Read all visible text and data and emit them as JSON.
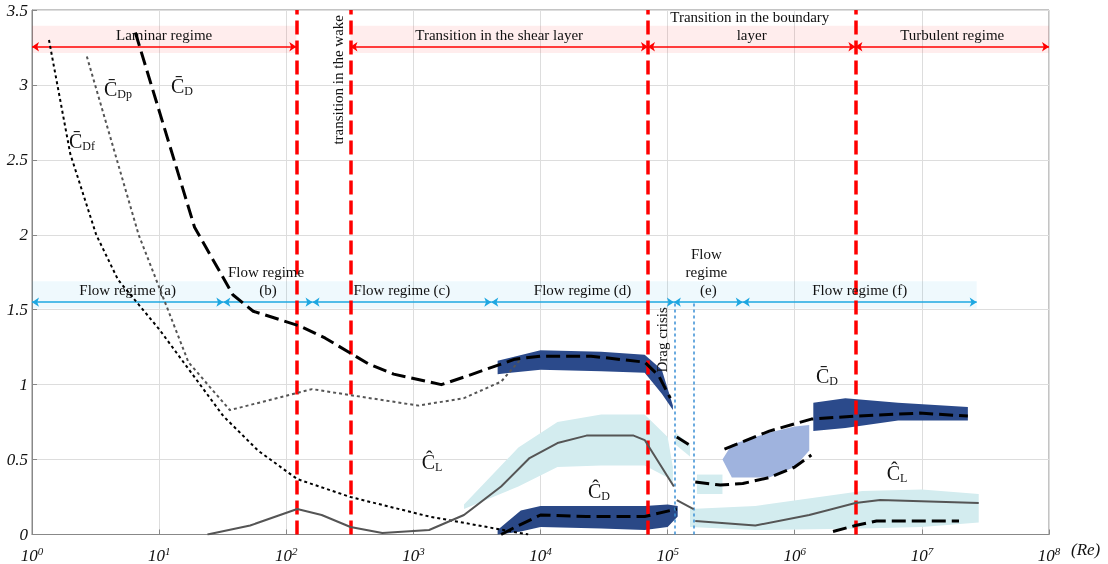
{
  "chart_data": {
    "type": "line",
    "xlabel": "(Re)",
    "log": "x",
    "grid": true,
    "xlim": [
      1,
      100000000
    ],
    "xticks": [
      {
        "value": 1,
        "label": "10$^{0}$"
      },
      {
        "value": 10,
        "label": "10$^{1}$"
      },
      {
        "value": 100,
        "label": "10$^{2}$"
      },
      {
        "value": 1000,
        "label": "10$^{3}$"
      },
      {
        "value": 10000,
        "label": "10$^{4}$"
      },
      {
        "value": 100000,
        "label": "10$^{5}$"
      },
      {
        "value": 1000000,
        "label": "10$^{6}$"
      },
      {
        "value": 10000000,
        "label": "10$^{7}$"
      },
      {
        "value": 100000000,
        "label": "10$^{8}$"
      }
    ],
    "ylim": [
      0,
      3.5
    ],
    "yticks": [
      0,
      0.5,
      1,
      1.5,
      2,
      2.5,
      3,
      3.5
    ],
    "series": [
      {
        "color": "#2b4a8b",
        "line_style": "solid",
        "x": [
          4600,
          10000,
          30000,
          66000,
          90000,
          110000
        ],
        "values": [
          null,
          null,
          null,
          null,
          null,
          null
        ],
        "upper": [
          1.16,
          1.23,
          1.22,
          1.2,
          1.1,
          0.86
        ],
        "lower": [
          1.07,
          1.1,
          1.09,
          1.08,
          0.94,
          0.83
        ]
      },
      {
        "color": "#2b4a8b",
        "line_style": "solid",
        "x": [
          1400000,
          2500000,
          6500000,
          23000000
        ],
        "values": [
          null,
          null,
          null,
          null
        ],
        "upper": [
          0.88,
          0.91,
          0.88,
          0.85
        ],
        "lower": [
          0.69,
          0.71,
          0.76,
          0.76
        ]
      },
      {
        "color": "#9fb3de",
        "line_style": "solid",
        "x": [
          270000,
          320000,
          630000,
          1000000,
          1300000
        ],
        "values": [
          null,
          null,
          null,
          null,
          null
        ],
        "upper": [
          0.5,
          0.6,
          0.68,
          0.72,
          0.73
        ],
        "lower": [
          0.5,
          0.38,
          0.38,
          0.45,
          0.56
        ]
      },
      {
        "color": "#2a4886",
        "line_style": "solid",
        "x": [
          4600,
          7000,
          10000,
          30000,
          66000,
          100000,
          120000
        ],
        "values": [
          null,
          null,
          null,
          null,
          null,
          null,
          null
        ],
        "upper": [
          0.03,
          0.16,
          0.19,
          0.19,
          0.19,
          0.2,
          0.19
        ],
        "lower": [
          0,
          0.02,
          0.05,
          0.04,
          0.03,
          0.05,
          0.12
        ]
      },
      {
        "color": "#d3ecef",
        "line_style": "solid",
        "x": [
          2500,
          6700,
          13600,
          30000,
          66000,
          100000,
          110000
        ],
        "values": [
          null,
          null,
          null,
          null,
          null,
          null,
          null
        ],
        "upper": [
          0.2,
          0.58,
          0.75,
          0.8,
          0.8,
          0.65,
          0.45
        ],
        "lower": [
          0.17,
          0.32,
          0.45,
          0.46,
          0.46,
          0.38,
          0.33
        ]
      },
      {
        "color": "#d3ecef",
        "line_style": "solid",
        "x": [
          115000,
          150000
        ],
        "values": [
          null,
          null
        ],
        "upper": [
          0.68,
          0.6
        ],
        "lower": [
          0.6,
          0.52
        ]
      },
      {
        "color": "#d3ecef",
        "line_style": "solid",
        "x": [
          170000,
          270000
        ],
        "values": [
          null,
          null
        ],
        "upper": [
          0.4,
          0.4
        ],
        "lower": [
          0.27,
          0.27
        ]
      },
      {
        "color": "#d3ecef",
        "line_style": "solid",
        "x": [
          150000,
          490000,
          3400000,
          10000000,
          28000000
        ],
        "values": [
          null,
          null,
          null,
          null,
          null
        ],
        "upper": [
          0.17,
          0.19,
          0.29,
          0.3,
          0.27
        ],
        "lower": [
          0.05,
          0.03,
          0.04,
          0.05,
          0.08
        ]
      },
      {
        "color": "#000000",
        "line_style": "dotted",
        "x": [
          1.36,
          2,
          3.2,
          4.75,
          10,
          32,
          60,
          122,
          320,
          1330,
          8000
        ],
        "values": [
          3.3,
          2.54,
          2.0,
          1.7,
          1.37,
          0.79,
          0.56,
          0.37,
          0.25,
          0.12,
          0
        ]
      },
      {
        "color": "#555555",
        "line_style": "dotted",
        "x": [
          2.7,
          6.9,
          10,
          17,
          36,
          160,
          320,
          1100,
          2500,
          4900,
          7000
        ],
        "values": [
          3.19,
          2.0,
          1.65,
          1.15,
          0.83,
          0.97,
          0.93,
          0.86,
          0.91,
          1.02,
          1.17
        ]
      },
      {
        "color": "#000000",
        "line_style": "dashed",
        "x": [
          6.5,
          19,
          38,
          55,
          129,
          203,
          440,
          700,
          1660,
          2700,
          6300,
          10000,
          25000,
          66000,
          85000,
          105000,
          null,
          118000,
          160000,
          null,
          165000,
          260000,
          390000,
          630000,
          1000000,
          1350000,
          null,
          280000,
          630000,
          1350000,
          3000000,
          9600000,
          23000000
        ],
        "values": [
          3.35,
          2.05,
          1.6,
          1.49,
          1.39,
          1.31,
          1.14,
          1.07,
          1.0,
          1.06,
          1.17,
          1.19,
          1.19,
          1.15,
          1.06,
          0.91,
          null,
          0.65,
          0.58,
          null,
          0.35,
          0.33,
          0.34,
          0.38,
          0.45,
          0.53,
          null,
          0.57,
          0.69,
          0.77,
          0.79,
          0.81,
          0.79
        ]
      },
      {
        "color": "#000000",
        "line_style": "dashed",
        "x": [
          4900,
          6700,
          10000,
          23000,
          66000,
          118000,
          null,
          2000000,
          3000000,
          4400000,
          19600000
        ],
        "values": [
          0,
          0.06,
          0.13,
          0.12,
          0.12,
          0.17,
          null,
          0.02,
          0.06,
          0.09,
          0.09
        ]
      },
      {
        "color": "#555555",
        "line_style": "solid",
        "x": [
          24,
          52,
          122,
          190,
          320,
          570,
          1330,
          2500,
          4900,
          8200,
          13600,
          23000,
          54000,
          66000,
          112000,
          null,
          118000,
          160000,
          null,
          165000,
          490000,
          1300000,
          3000000,
          4700000,
          28000000
        ],
        "values": [
          0,
          0.06,
          0.17,
          0.13,
          0.05,
          0.01,
          0.03,
          0.13,
          0.32,
          0.51,
          0.61,
          0.66,
          0.66,
          0.63,
          0.32,
          null,
          0.23,
          0.17,
          null,
          0.09,
          0.06,
          0.13,
          0.21,
          0.23,
          0.21
        ]
      }
    ],
    "ref_lines": [
      {
        "axis": "x",
        "value": 120,
        "color": "#ff0000",
        "line_style": "dashed"
      },
      {
        "axis": "x",
        "value": 320,
        "color": "#ff0000",
        "line_style": "dashed",
        "label": "transition in the wake"
      },
      {
        "axis": "x",
        "value": 70000,
        "color": "#ff0000",
        "line_style": "dashed"
      },
      {
        "axis": "x",
        "value": 3000000,
        "color": "#ff0000",
        "line_style": "dashed"
      },
      {
        "axis": "x",
        "value": 113000,
        "color": "#3a8fd5",
        "line_style": "dotted",
        "label": "Drag crisis"
      },
      {
        "axis": "x",
        "value": 160000,
        "color": "#3a8fd5",
        "line_style": "dotted"
      }
    ],
    "bands": [
      {
        "axis": "x",
        "from": 1,
        "to": 120,
        "label": "Laminar regime",
        "color": "#ff0000"
      },
      {
        "axis": "x",
        "from": 320,
        "to": 70000,
        "label": "Transition in the shear layer",
        "color": "#ff0000"
      },
      {
        "axis": "x",
        "from": 70000,
        "to": 3000000,
        "label": "Transition in the boundary layer",
        "color": "#ff0000"
      },
      {
        "axis": "x",
        "from": 3000000,
        "to": 100000000,
        "label": "Turbulent regime",
        "color": "#ff0000"
      },
      {
        "axis": "x",
        "from": 1,
        "to": 32,
        "label": "Flow regime (a)",
        "color": "#1ea7e1"
      },
      {
        "axis": "x",
        "from": 32,
        "to": 161,
        "label": "Flow regime (b)",
        "color": "#1ea7e1"
      },
      {
        "axis": "x",
        "from": 161,
        "to": 4100,
        "label": "Flow regime (c)",
        "color": "#1ea7e1"
      },
      {
        "axis": "x",
        "from": 4100,
        "to": 112000,
        "label": "Flow regime (d)",
        "color": "#1ea7e1"
      },
      {
        "axis": "x",
        "from": 112000,
        "to": 390000,
        "label": "Flow regime (e)",
        "color": "#1ea7e1"
      },
      {
        "axis": "x",
        "from": 390000,
        "to": 27000000,
        "label": "Flow regime (f)",
        "color": "#1ea7e1"
      }
    ],
    "annotations": [
      "C̄$_{Df}$",
      "C̄$_{Dp}$",
      "C̄$_{D}$",
      "Ĉ$_{L}$",
      "Ĉ$_{D}$",
      "C̄$_{D}$",
      "Ĉ$_{L}$"
    ]
  }
}
